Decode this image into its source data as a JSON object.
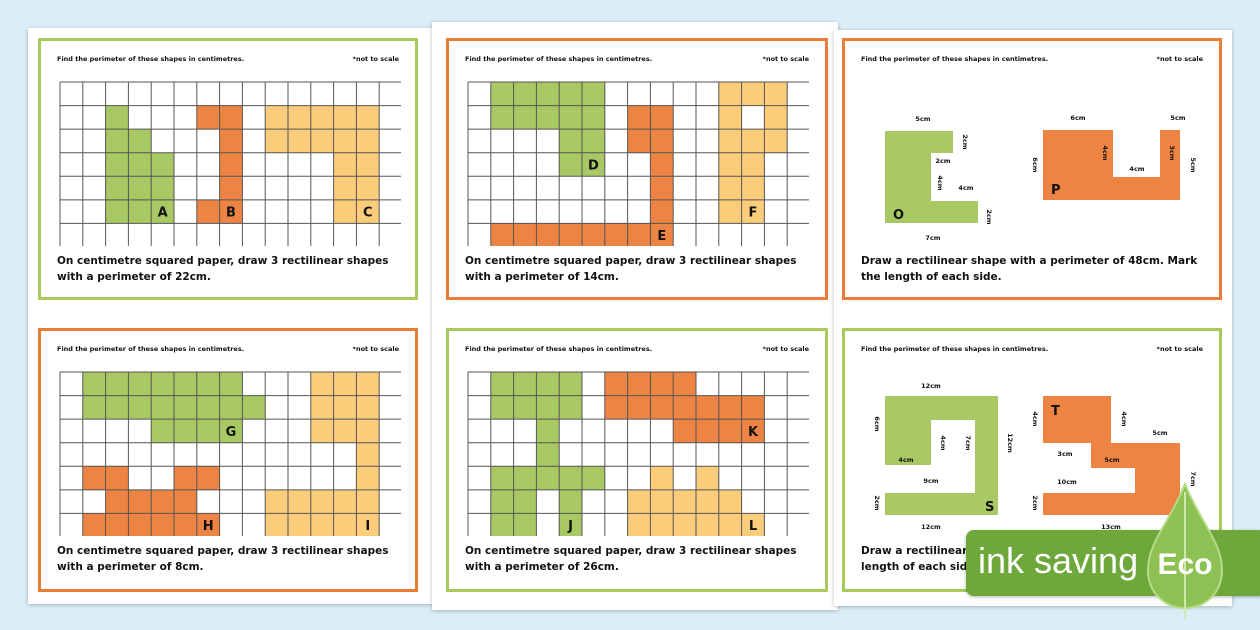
{
  "colors": {
    "green": "#a7c862",
    "orange": "#ee8443",
    "yellow": "#fbcd7a",
    "green_border": "#a8cb5c",
    "orange_border": "#ea7d35",
    "eco_green": "#6ea83a"
  },
  "cards": [
    {
      "header": "Find the perimeter of these shapes in centimetres.",
      "note": "*not to scale",
      "task": "On centimetre squared paper, draw 3 rectilinear shapes with a perimeter of 22cm.",
      "shapes": [
        {
          "label": "A",
          "color": "green",
          "cells": [
            [
              1,
              2,
              2
            ],
            [
              2,
              2,
              3
            ],
            [
              3,
              2,
              4
            ],
            [
              4,
              2,
              4
            ],
            [
              5,
              2,
              4
            ]
          ]
        },
        {
          "label": "B",
          "color": "orange",
          "cells": [
            [
              1,
              6,
              7
            ],
            [
              2,
              7,
              7
            ],
            [
              3,
              7,
              7
            ],
            [
              4,
              7,
              7
            ],
            [
              5,
              6,
              7
            ]
          ]
        },
        {
          "label": "C",
          "color": "yellow",
          "cells": [
            [
              1,
              9,
              13
            ],
            [
              2,
              9,
              13
            ],
            [
              3,
              12,
              13
            ],
            [
              4,
              12,
              13
            ],
            [
              5,
              12,
              13
            ]
          ]
        }
      ]
    },
    {
      "header": "Find the perimeter of these shapes in centimetres.",
      "note": "*not to scale",
      "task": "On centimetre squared paper, draw 3 rectilinear shapes with a perimeter of 14cm.",
      "shapes": [
        {
          "label": "D",
          "color": "green",
          "cells": [
            [
              0,
              1,
              5
            ],
            [
              1,
              1,
              5
            ],
            [
              2,
              4,
              5
            ],
            [
              3,
              4,
              5
            ]
          ]
        },
        {
          "label": "E",
          "color": "orange",
          "cells": [
            [
              1,
              7,
              8
            ],
            [
              2,
              7,
              8
            ],
            [
              3,
              8,
              8
            ],
            [
              4,
              8,
              8
            ],
            [
              5,
              8,
              8
            ],
            [
              6,
              1,
              8
            ]
          ]
        },
        {
          "label": "F",
          "color": "yellow",
          "cells": [
            [
              0,
              11,
              13
            ],
            [
              1,
              11,
              11
            ],
            [
              1,
              13,
              13
            ],
            [
              2,
              11,
              13
            ],
            [
              3,
              11,
              12
            ],
            [
              4,
              11,
              12
            ],
            [
              5,
              11,
              12
            ]
          ]
        }
      ]
    },
    {
      "header": "Find the perimeter of these shapes in centimetres.",
      "note": "*not to scale",
      "task": "Draw a rectilinear shape with a perimeter of 48cm. Mark the length of each side.",
      "shapes": [
        {
          "label": "O",
          "color": "green",
          "dims": [
            "5cm",
            "2cm",
            "2cm",
            "4cm",
            "4cm",
            "2cm",
            "7cm"
          ]
        },
        {
          "label": "P",
          "color": "orange",
          "dims": [
            "6cm",
            "5cm",
            "6cm",
            "4cm",
            "4cm",
            "3cm",
            "5cm"
          ]
        }
      ]
    },
    {
      "header": "Find the perimeter of these shapes in centimetres.",
      "note": "*not to scale",
      "task": "On centimetre squared paper, draw 3 rectilinear shapes with a perimeter of 8cm.",
      "shapes": [
        {
          "label": "G",
          "color": "green",
          "cells": [
            [
              0,
              1,
              7
            ],
            [
              1,
              1,
              8
            ],
            [
              2,
              4,
              7
            ]
          ]
        },
        {
          "label": "H",
          "color": "orange",
          "cells": [
            [
              4,
              1,
              2
            ],
            [
              4,
              5,
              6
            ],
            [
              5,
              2,
              5
            ],
            [
              6,
              1,
              6
            ]
          ]
        },
        {
          "label": "I",
          "color": "yellow",
          "cells": [
            [
              0,
              11,
              13
            ],
            [
              1,
              11,
              13
            ],
            [
              2,
              11,
              13
            ],
            [
              3,
              13,
              13
            ],
            [
              4,
              13,
              13
            ],
            [
              5,
              9,
              13
            ],
            [
              6,
              9,
              13
            ]
          ]
        }
      ]
    },
    {
      "header": "Find the perimeter of these shapes in centimetres.",
      "note": "*not to scale",
      "task": "On centimetre squared paper, draw 3 rectilinear shapes with a perimeter of 26cm.",
      "shapes": [
        {
          "label": "J",
          "color": "green",
          "cells": [
            [
              0,
              1,
              4
            ],
            [
              1,
              1,
              4
            ],
            [
              2,
              3,
              3
            ],
            [
              3,
              3,
              3
            ],
            [
              4,
              1,
              5
            ],
            [
              5,
              1,
              2
            ],
            [
              5,
              4,
              4
            ],
            [
              6,
              1,
              2
            ],
            [
              6,
              4,
              4
            ]
          ]
        },
        {
          "label": "K",
          "color": "orange",
          "cells": [
            [
              0,
              6,
              9
            ],
            [
              1,
              6,
              12
            ],
            [
              2,
              9,
              12
            ]
          ]
        },
        {
          "label": "L",
          "color": "yellow",
          "cells": [
            [
              4,
              8,
              8
            ],
            [
              4,
              10,
              10
            ],
            [
              5,
              7,
              11
            ],
            [
              6,
              7,
              12
            ]
          ]
        }
      ]
    },
    {
      "header": "Find the perimeter of these shapes in centimetres.",
      "note": "*not to scale",
      "task": "Draw a rectilinear\nlength of each side.",
      "shapes": [
        {
          "label": "S",
          "color": "green",
          "dims": [
            "12cm",
            "6cm",
            "4cm",
            "4cm",
            "7cm",
            "12cm",
            "9cm",
            "2cm",
            "12cm"
          ]
        },
        {
          "label": "T",
          "color": "orange",
          "dims": [
            "4cm",
            "4cm",
            "5cm",
            "5cm",
            "3cm",
            "10cm",
            "2cm",
            "7cm",
            "13cm"
          ]
        }
      ]
    }
  ],
  "eco_badge": {
    "text": "ink saving",
    "leaf_text": "Eco"
  }
}
